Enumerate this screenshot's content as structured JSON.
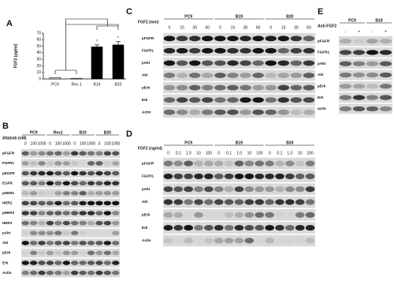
{
  "panel_a": {
    "label": "A",
    "y_label": "FGF2 (pg/ml)",
    "categories": [
      "PC9",
      "Rev 1",
      "B19",
      "B20"
    ],
    "values": [
      2,
      1,
      49,
      52
    ],
    "errors": [
      null,
      null,
      3,
      5
    ],
    "colors": [
      "#ffffff",
      "#ffffff",
      "#000000",
      "#000000"
    ],
    "ylim": [
      0,
      70
    ],
    "yticks": [
      0,
      10,
      20,
      30,
      40,
      50,
      60,
      70
    ],
    "annotations": [
      "*",
      "*"
    ]
  },
  "panel_b": {
    "label": "B",
    "treatment": "Afatinib (nM)",
    "groups": [
      "PC9",
      "Rev1",
      "B19",
      "B20"
    ],
    "doses": [
      "0",
      "100",
      "1000"
    ],
    "rows": [
      "pFGFR",
      "FGFR1",
      "pEGFR",
      "EGFR",
      "pHER2",
      "HER2",
      "pHER3",
      "HER3",
      "pAkt",
      "Akt",
      "pErk",
      "Erk",
      "Actin"
    ]
  },
  "panel_c": {
    "label": "C",
    "treatment": "FGF2 (min)",
    "groups": [
      "PC9",
      "B19",
      "B20"
    ],
    "doses": [
      "0",
      "15",
      "30",
      "60"
    ],
    "rows": [
      "pFGFR",
      "FGFR1",
      "pAkt",
      "Akt",
      "pErk",
      "Erk",
      "Actin"
    ]
  },
  "panel_d": {
    "label": "D",
    "treatment": "FGF2 (ng/ml)",
    "groups": [
      "PC9",
      "B19",
      "B20"
    ],
    "doses": [
      "0",
      "0.1",
      "1.0",
      "10",
      "100"
    ],
    "rows": [
      "pFGFR",
      "FGFR1",
      "pAkt",
      "Akt",
      "pErk",
      "Erk",
      "Actin"
    ]
  },
  "panel_e": {
    "label": "E",
    "treatment": "Anti-FGF2",
    "groups": [
      "PC9",
      "B19"
    ],
    "doses": [
      "-",
      "+"
    ],
    "rows": [
      "pFGFR",
      "FGFR1",
      "pAkt",
      "Akt",
      "pErk",
      "Erk",
      "actin"
    ]
  }
}
